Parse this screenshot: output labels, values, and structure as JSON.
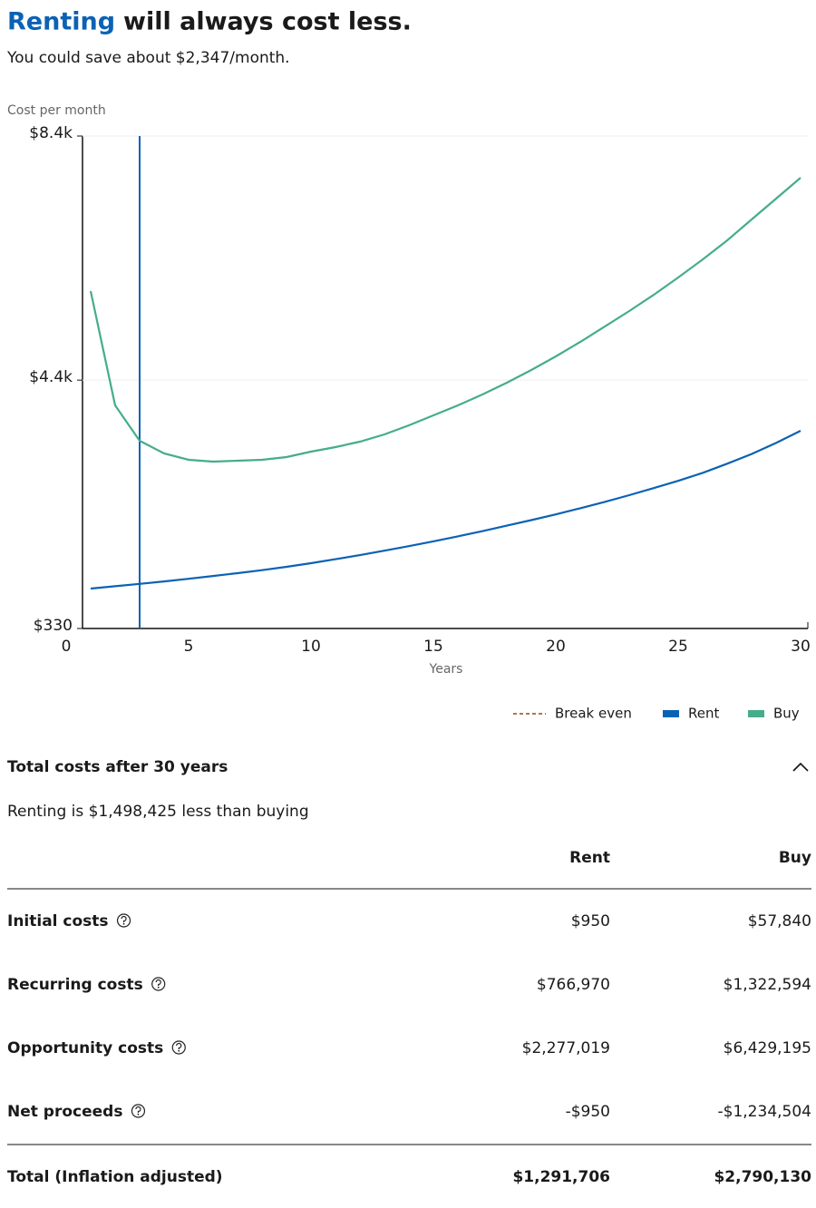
{
  "header": {
    "title_highlight": "Renting",
    "title_rest": "will always cost less.",
    "subtitle": "You could save about $2,347/month."
  },
  "chart_data": {
    "type": "line",
    "ylabel": "Cost per month",
    "xlabel": "Years",
    "x": [
      1,
      2,
      3,
      4,
      5,
      6,
      7,
      8,
      9,
      10,
      11,
      12,
      13,
      14,
      15,
      16,
      17,
      18,
      19,
      20,
      21,
      22,
      23,
      24,
      25,
      26,
      27,
      28,
      29,
      30
    ],
    "series": [
      {
        "name": "Rent",
        "color": "#0b62b5",
        "values": [
          984,
          1022,
          1061,
          1102,
          1145,
          1190,
          1237,
          1286,
          1340,
          1400,
          1465,
          1533,
          1605,
          1680,
          1758,
          1840,
          1925,
          2015,
          2106,
          2200,
          2300,
          2405,
          2515,
          2630,
          2750,
          2880,
          3030,
          3190,
          3370,
          3570
        ]
      },
      {
        "name": "Buy",
        "color": "#45ad8a",
        "values": [
          5858,
          3986,
          3406,
          3198,
          3094,
          3064,
          3079,
          3094,
          3139,
          3228,
          3302,
          3391,
          3510,
          3659,
          3822,
          3986,
          4164,
          4357,
          4565,
          4788,
          5026,
          5278,
          5531,
          5798,
          6081,
          6378,
          6690,
          7032,
          7374,
          7716
        ]
      }
    ],
    "legend_extra": [
      {
        "name": "Break even",
        "color": "#a0401c",
        "style": "dashed"
      }
    ],
    "highlight_x": 3,
    "highlight_color": "#0b62b5",
    "xlim": [
      0,
      30
    ],
    "xticks": [
      0,
      5,
      10,
      15,
      20,
      25,
      30
    ],
    "ylim": [
      330,
      8400
    ],
    "yticks": [
      {
        "value": 330,
        "label": "$330"
      },
      {
        "value": 4400,
        "label": "$4.4k"
      },
      {
        "value": 8400,
        "label": "$8.4k"
      }
    ],
    "grid": true
  },
  "summary": {
    "title": "Total costs after 30 years",
    "text": "Renting is $1,498,425 less than buying"
  },
  "table": {
    "columns": [
      "Rent",
      "Buy"
    ],
    "rows": [
      [
        "Initial costs",
        "$950",
        "$57,840"
      ],
      [
        "Recurring costs",
        "$766,970",
        "$1,322,594"
      ],
      [
        "Opportunity costs",
        "$2,277,019",
        "$6,429,195"
      ],
      [
        "Net proceeds",
        "-$950",
        "-$1,234,504"
      ]
    ],
    "total": [
      "Total (Inflation adjusted)",
      "$1,291,706",
      "$2,790,130"
    ]
  }
}
